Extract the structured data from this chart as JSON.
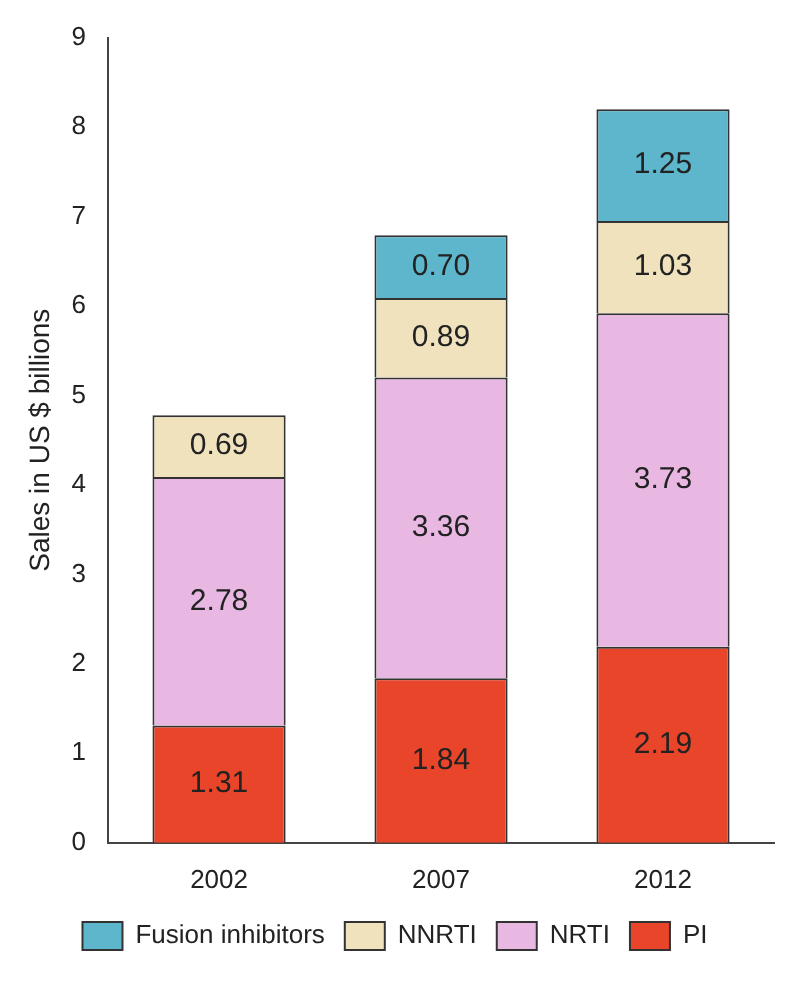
{
  "chart_data": {
    "type": "bar",
    "ylabel": "Sales in US $ billions",
    "categories": [
      "2002",
      "2007",
      "2012"
    ],
    "stacked": true,
    "ylim": [
      0,
      9
    ],
    "yticks": [
      0,
      1,
      2,
      3,
      4,
      5,
      6,
      7,
      8,
      9
    ],
    "grid": false,
    "legend": "bottom",
    "series": [
      {
        "name": "PI",
        "color": "#e8452a",
        "values": [
          1.31,
          1.84,
          2.19
        ],
        "value_labels": [
          "1.31",
          "1.84",
          "2.19"
        ]
      },
      {
        "name": "NRTI",
        "color": "#e8b8e2",
        "values": [
          2.78,
          3.36,
          3.73
        ],
        "value_labels": [
          "2.78",
          "3.36",
          "3.73"
        ]
      },
      {
        "name": "NNRTI",
        "color": "#f0e2bd",
        "values": [
          0.69,
          0.89,
          1.03
        ],
        "value_labels": [
          "0.69",
          "0.89",
          "1.03"
        ]
      },
      {
        "name": "Fusion inhibitors",
        "color": "#5db6cc",
        "values": [
          null,
          0.7,
          1.25
        ],
        "value_labels": [
          null,
          "0.70",
          "1.25"
        ]
      }
    ]
  }
}
